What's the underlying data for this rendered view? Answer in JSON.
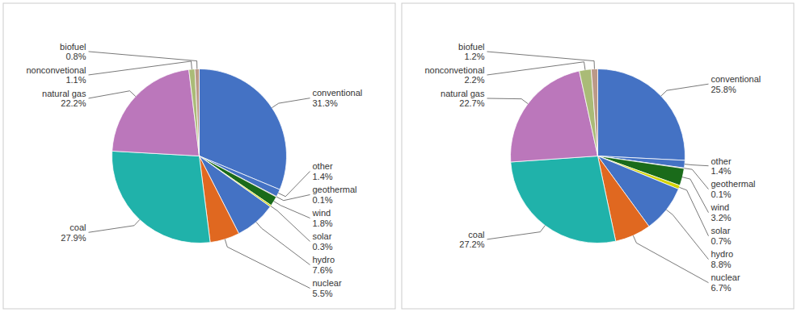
{
  "chart_data": [
    {
      "type": "pie",
      "categories": [
        "conventional",
        "other",
        "geothermal",
        "wind",
        "solar",
        "hydro",
        "nuclear",
        "coal",
        "natural gas",
        "nonconvetional",
        "biofuel"
      ],
      "values": [
        31.3,
        1.4,
        0.1,
        1.8,
        0.3,
        7.6,
        5.5,
        27.9,
        22.2,
        1.1,
        0.8
      ],
      "value_labels": [
        "31.3%",
        "1.4%",
        "0.1%",
        "1.8%",
        "0.3%",
        "7.6%",
        "5.5%",
        "27.9%",
        "22.2%",
        "1.1%",
        "0.8%"
      ],
      "colors": [
        "#4472C4",
        "#4472C4",
        "#CC1100",
        "#1a6b1a",
        "#D4D400",
        "#4472C4",
        "#E06820",
        "#20B2AA",
        "#BB77BB",
        "#AABB77",
        "#BB9988"
      ]
    },
    {
      "type": "pie",
      "categories": [
        "conventional",
        "other",
        "geothermal",
        "wind",
        "solar",
        "hydro",
        "nuclear",
        "coal",
        "natural gas",
        "nonconvetional",
        "biofuel"
      ],
      "values": [
        25.8,
        1.4,
        0.1,
        3.2,
        0.7,
        8.8,
        6.7,
        27.2,
        22.7,
        2.2,
        1.2
      ],
      "value_labels": [
        "25.8%",
        "1.4%",
        "0.1%",
        "3.2%",
        "0.7%",
        "8.8%",
        "6.7%",
        "27.2%",
        "22.7%",
        "2.2%",
        "1.2%"
      ],
      "colors": [
        "#4472C4",
        "#4472C4",
        "#CC1100",
        "#1a6b1a",
        "#D4D400",
        "#4472C4",
        "#E06820",
        "#20B2AA",
        "#BB77BB",
        "#AABB77",
        "#BB9988"
      ]
    }
  ]
}
